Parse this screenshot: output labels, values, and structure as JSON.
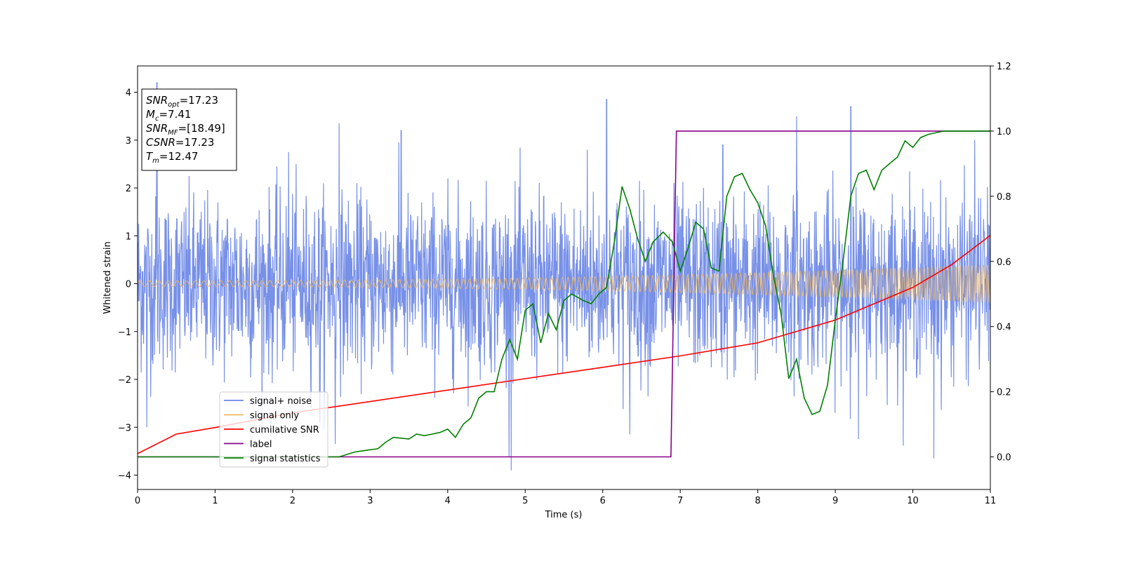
{
  "chart_data": {
    "type": "line",
    "xlabel": "Time (s)",
    "ylabel": "Whitened strain",
    "xlim": [
      0,
      11
    ],
    "ylim": [
      -4.3,
      4.55
    ],
    "y2lim": [
      -0.1,
      1.2
    ],
    "x_ticks": [
      "0",
      "1",
      "2",
      "3",
      "4",
      "5",
      "6",
      "7",
      "8",
      "9",
      "10",
      "11"
    ],
    "y_ticks": [
      "4",
      "3",
      "2",
      "1",
      "0",
      "−1",
      "−2",
      "−3",
      "−4"
    ],
    "y2_ticks": [
      "1.2",
      "1.0",
      "0.8",
      "0.6",
      "0.4",
      "0.2",
      "0.0"
    ],
    "grid": false,
    "legend_position": "lower-left",
    "annotation": [
      {
        "base": "SNR",
        "sub": "opt",
        "value": "=17.23"
      },
      {
        "base": "M",
        "sub": "c",
        "value": "=7.41"
      },
      {
        "base": "SNR",
        "sub": "MF",
        "value": "=[18.49]"
      },
      {
        "base": "CSNR",
        "sub": "",
        "value": "=17.23"
      },
      {
        "base": "T",
        "sub": "m",
        "value": "=12.47"
      }
    ],
    "series": [
      {
        "name": "signal+ noise",
        "axis": "left",
        "color": "#6b87e6",
        "style": "noise",
        "envelope": {
          "typical_abs": 1.2,
          "max_abs": 3.8
        },
        "peaks": [
          {
            "x": 0.25,
            "y": 4.2
          },
          {
            "x": 0.12,
            "y": -3.0
          },
          {
            "x": 1.95,
            "y": 2.75
          },
          {
            "x": 2.35,
            "y": -2.9
          },
          {
            "x": 2.6,
            "y": 3.35
          },
          {
            "x": 2.55,
            "y": -3.35
          },
          {
            "x": 3.4,
            "y": 3.2
          },
          {
            "x": 5.8,
            "y": 2.8
          },
          {
            "x": 6.05,
            "y": 3.85
          },
          {
            "x": 4.82,
            "y": -3.9
          },
          {
            "x": 6.35,
            "y": -3.15
          },
          {
            "x": 8.5,
            "y": 3.5
          },
          {
            "x": 9.2,
            "y": 3.7
          },
          {
            "x": 9.3,
            "y": -3.25
          },
          {
            "x": 10.27,
            "y": -3.65
          },
          {
            "x": 7.55,
            "y": 2.9
          },
          {
            "x": 10.8,
            "y": 3.0
          }
        ]
      },
      {
        "name": "signal only",
        "axis": "left",
        "color": "#f0b860",
        "style": "chirp",
        "amplitude_start": 0.06,
        "amplitude_end": 0.4
      },
      {
        "name": "cumilative SNR",
        "axis": "right",
        "color": "#ff0000",
        "x": [
          0,
          0.5,
          1,
          2,
          3,
          4,
          5,
          6,
          7,
          8,
          9,
          10,
          10.5,
          11
        ],
        "y": [
          0.01,
          0.07,
          0.09,
          0.135,
          0.17,
          0.205,
          0.24,
          0.275,
          0.31,
          0.35,
          0.42,
          0.52,
          0.59,
          0.68
        ]
      },
      {
        "name": "label",
        "axis": "right",
        "color": "#8b008b",
        "x": [
          0,
          6.88,
          6.95,
          11
        ],
        "y": [
          0.0,
          0.0,
          1.0,
          1.0
        ]
      },
      {
        "name": "signal statistics",
        "axis": "right",
        "color": "#008000",
        "x": [
          0,
          2.6,
          2.8,
          2.95,
          3.1,
          3.2,
          3.3,
          3.5,
          3.6,
          3.7,
          3.8,
          3.9,
          4.0,
          4.1,
          4.2,
          4.3,
          4.4,
          4.5,
          4.6,
          4.7,
          4.8,
          4.9,
          5.0,
          5.1,
          5.2,
          5.3,
          5.4,
          5.5,
          5.6,
          5.75,
          5.85,
          5.95,
          6.05,
          6.15,
          6.25,
          6.35,
          6.45,
          6.55,
          6.65,
          6.78,
          6.9,
          7.0,
          7.1,
          7.2,
          7.3,
          7.4,
          7.5,
          7.6,
          7.7,
          7.8,
          7.9,
          8.0,
          8.1,
          8.2,
          8.3,
          8.4,
          8.5,
          8.6,
          8.7,
          8.8,
          8.9,
          9.0,
          9.1,
          9.2,
          9.3,
          9.4,
          9.5,
          9.6,
          9.7,
          9.8,
          9.9,
          10.0,
          10.1,
          10.2,
          10.4,
          10.6,
          11
        ],
        "y": [
          0.0,
          0.0,
          0.015,
          0.02,
          0.025,
          0.045,
          0.06,
          0.055,
          0.07,
          0.065,
          0.07,
          0.075,
          0.085,
          0.06,
          0.1,
          0.12,
          0.18,
          0.2,
          0.2,
          0.3,
          0.36,
          0.3,
          0.45,
          0.47,
          0.35,
          0.44,
          0.39,
          0.48,
          0.5,
          0.48,
          0.47,
          0.5,
          0.52,
          0.66,
          0.83,
          0.76,
          0.67,
          0.6,
          0.66,
          0.69,
          0.66,
          0.57,
          0.64,
          0.72,
          0.7,
          0.58,
          0.57,
          0.8,
          0.86,
          0.87,
          0.82,
          0.78,
          0.71,
          0.56,
          0.44,
          0.24,
          0.3,
          0.18,
          0.13,
          0.14,
          0.22,
          0.42,
          0.6,
          0.8,
          0.87,
          0.88,
          0.82,
          0.88,
          0.9,
          0.92,
          0.97,
          0.95,
          0.98,
          0.99,
          1.0,
          1.0,
          1.0
        ]
      }
    ]
  }
}
